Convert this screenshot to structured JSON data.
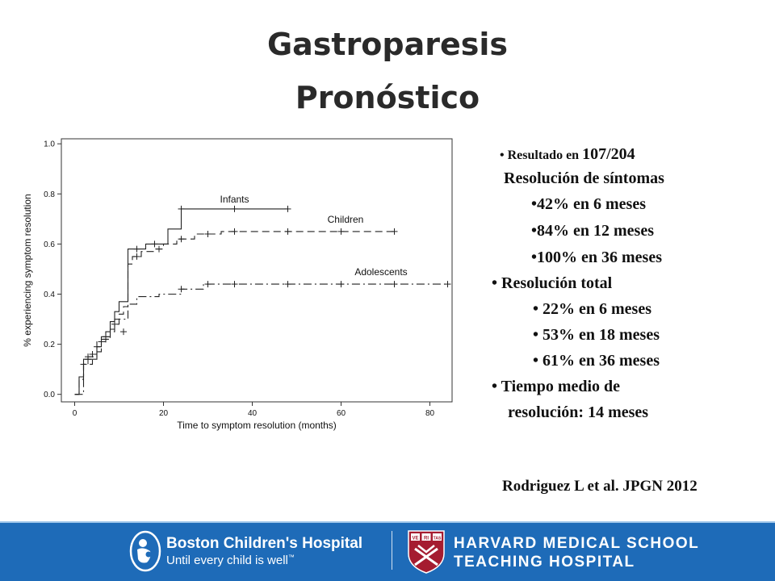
{
  "slide": {
    "title_line1": "Gastroparesis",
    "title_line2": "Pronóstico"
  },
  "bullets": {
    "b1_small": "Resultado en",
    "b1_large": "107/204",
    "b1_cont": "Resolución de síntomas",
    "b1_s1": "42% en 6 meses",
    "b1_s2": "84% en 12 meses",
    "b1_s3": "100% en 36 meses",
    "b2": "Resolución total",
    "b2_s1": "22% en 6 meses",
    "b2_s2": "53% en 18 meses",
    "b2_s3": "61% en 36 meses",
    "b3": "Tiempo medio de",
    "b3_cont": "resolución: 14 meses"
  },
  "citation": "Rodriguez L et al. JPGN 2012",
  "footer": {
    "bch_name": "Boston Children's Hospital",
    "bch_tagline": "Until every child is well",
    "hms_line1": "HARVARD MEDICAL SCHOOL",
    "hms_line2": "TEACHING HOSPITAL",
    "shield_text": [
      "VE",
      "RI",
      "TAS"
    ],
    "colors": {
      "footer_bg": "#1e6bb8",
      "shield": "#a51c30"
    }
  },
  "chart_data": {
    "type": "line",
    "xlabel": "Time to symptom resolution (months)",
    "ylabel": "% experiencing symptom resolution",
    "xlim": [
      -3,
      85
    ],
    "ylim": [
      -0.03,
      1.02
    ],
    "xticks": [
      0,
      20,
      40,
      60,
      80
    ],
    "yticks": [
      "0.0",
      "0.2",
      "0.4",
      "0.6",
      "0.8",
      "1.0"
    ],
    "grid": false,
    "series": [
      {
        "name": "Infants",
        "style": "solid",
        "steps": [
          [
            0,
            0
          ],
          [
            1,
            0
          ],
          [
            1,
            0.07
          ],
          [
            2,
            0.07
          ],
          [
            2,
            0.14
          ],
          [
            5,
            0.14
          ],
          [
            5,
            0.19
          ],
          [
            6,
            0.19
          ],
          [
            6,
            0.23
          ],
          [
            8,
            0.23
          ],
          [
            8,
            0.29
          ],
          [
            9,
            0.29
          ],
          [
            9,
            0.33
          ],
          [
            10,
            0.33
          ],
          [
            10,
            0.37
          ],
          [
            12,
            0.37
          ],
          [
            12,
            0.58
          ],
          [
            16,
            0.58
          ],
          [
            16,
            0.6
          ],
          [
            21,
            0.6
          ],
          [
            21,
            0.66
          ],
          [
            24,
            0.66
          ],
          [
            24,
            0.74
          ],
          [
            48,
            0.74
          ]
        ],
        "censor": [
          [
            3,
            0.14
          ],
          [
            5,
            0.19
          ],
          [
            7,
            0.23
          ],
          [
            14,
            0.58
          ],
          [
            18,
            0.6
          ],
          [
            24,
            0.74
          ],
          [
            36,
            0.74
          ],
          [
            48,
            0.74
          ]
        ]
      },
      {
        "name": "Children",
        "style": "dashed",
        "steps": [
          [
            0,
            0
          ],
          [
            1,
            0
          ],
          [
            1,
            0.06
          ],
          [
            2,
            0.06
          ],
          [
            2,
            0.12
          ],
          [
            4,
            0.12
          ],
          [
            4,
            0.16
          ],
          [
            5,
            0.16
          ],
          [
            5,
            0.21
          ],
          [
            7,
            0.21
          ],
          [
            7,
            0.25
          ],
          [
            9,
            0.25
          ],
          [
            9,
            0.28
          ],
          [
            10,
            0.28
          ],
          [
            10,
            0.32
          ],
          [
            11,
            0.32
          ],
          [
            11,
            0.35
          ],
          [
            12,
            0.35
          ],
          [
            12,
            0.52
          ],
          [
            13,
            0.52
          ],
          [
            13,
            0.55
          ],
          [
            15,
            0.55
          ],
          [
            15,
            0.57
          ],
          [
            18,
            0.57
          ],
          [
            18,
            0.58
          ],
          [
            20,
            0.58
          ],
          [
            20,
            0.6
          ],
          [
            23,
            0.6
          ],
          [
            23,
            0.62
          ],
          [
            27,
            0.62
          ],
          [
            27,
            0.64
          ],
          [
            33,
            0.64
          ],
          [
            33,
            0.65
          ],
          [
            72,
            0.65
          ]
        ],
        "censor": [
          [
            2,
            0.12
          ],
          [
            4,
            0.16
          ],
          [
            6,
            0.21
          ],
          [
            9,
            0.28
          ],
          [
            14,
            0.55
          ],
          [
            19,
            0.58
          ],
          [
            24,
            0.62
          ],
          [
            30,
            0.64
          ],
          [
            36,
            0.65
          ],
          [
            48,
            0.65
          ],
          [
            60,
            0.65
          ],
          [
            72,
            0.65
          ]
        ]
      },
      {
        "name": "Adolescents",
        "style": "dashdot",
        "steps": [
          [
            0,
            0
          ],
          [
            2,
            0
          ],
          [
            2,
            0.12
          ],
          [
            3,
            0.12
          ],
          [
            3,
            0.15
          ],
          [
            5,
            0.15
          ],
          [
            5,
            0.17
          ],
          [
            6,
            0.17
          ],
          [
            6,
            0.22
          ],
          [
            8,
            0.22
          ],
          [
            8,
            0.26
          ],
          [
            9,
            0.26
          ],
          [
            9,
            0.3
          ],
          [
            12,
            0.3
          ],
          [
            12,
            0.36
          ],
          [
            14,
            0.36
          ],
          [
            14,
            0.39
          ],
          [
            19,
            0.39
          ],
          [
            19,
            0.4
          ],
          [
            24,
            0.4
          ],
          [
            24,
            0.42
          ],
          [
            29,
            0.42
          ],
          [
            29,
            0.44
          ],
          [
            84,
            0.44
          ]
        ],
        "censor": [
          [
            3,
            0.15
          ],
          [
            7,
            0.22
          ],
          [
            11,
            0.25
          ],
          [
            24,
            0.42
          ],
          [
            30,
            0.44
          ],
          [
            36,
            0.44
          ],
          [
            48,
            0.44
          ],
          [
            60,
            0.44
          ],
          [
            72,
            0.44
          ],
          [
            84,
            0.44
          ]
        ]
      }
    ]
  }
}
